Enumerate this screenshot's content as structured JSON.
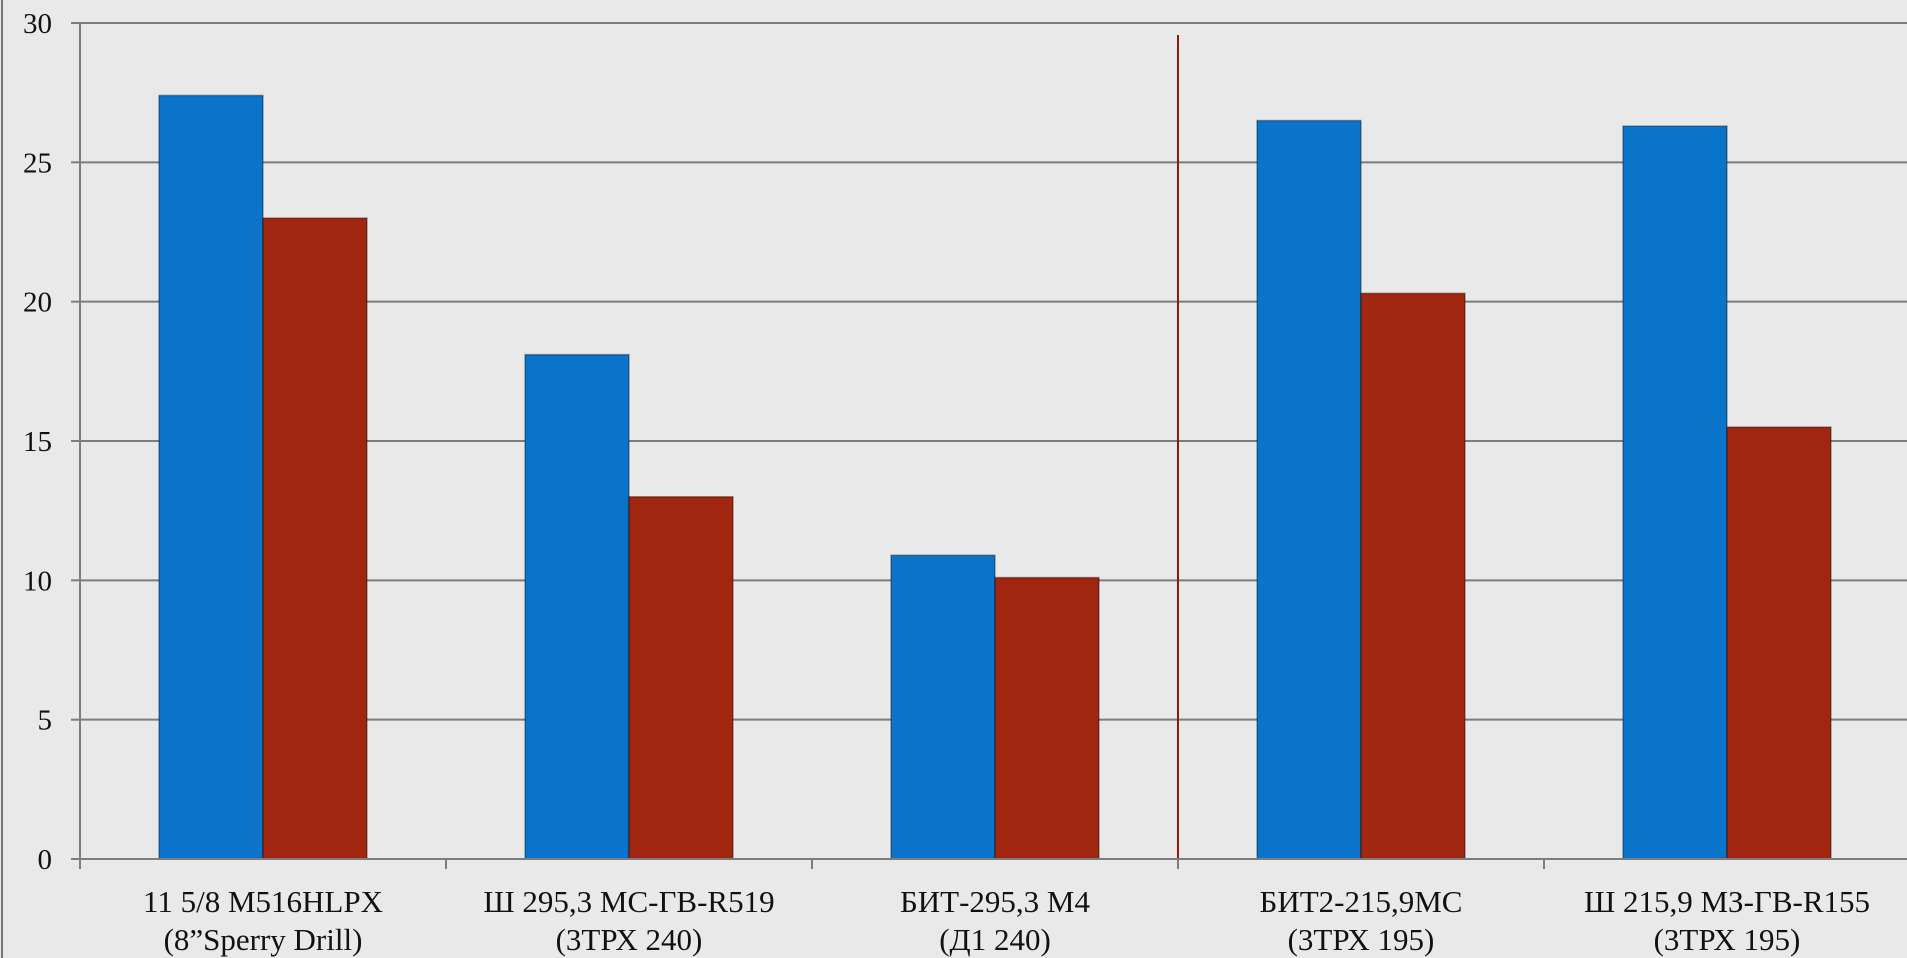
{
  "chart_data": {
    "type": "bar",
    "categories": [
      [
        "11 5/8 M516HLPX",
        "(8”Sperry Drill)"
      ],
      [
        "Ш 295,3 МС-ГВ-R519",
        "(3ТРХ 240)"
      ],
      [
        "БИТ-295,3 М4",
        "(Д1 240)"
      ],
      [
        "БИТ2-215,9МС",
        "(3ТРХ 195)"
      ],
      [
        "Ш 215,9 МЗ-ГВ-R155",
        "(3ТРХ 195)"
      ]
    ],
    "series": [
      {
        "values": [
          27.4,
          18.1,
          10.9,
          26.5,
          26.3
        ],
        "color": "#0a74cb"
      },
      {
        "values": [
          23.0,
          13.0,
          10.1,
          20.3,
          15.5
        ],
        "color": "#a1260f"
      }
    ],
    "ylim": [
      0,
      30
    ],
    "yticks": [
      "0",
      "5",
      "10",
      "15",
      "20",
      "25",
      "30"
    ],
    "grid": true,
    "separator_after_category": 3,
    "separator_color": "#8b1a10"
  }
}
